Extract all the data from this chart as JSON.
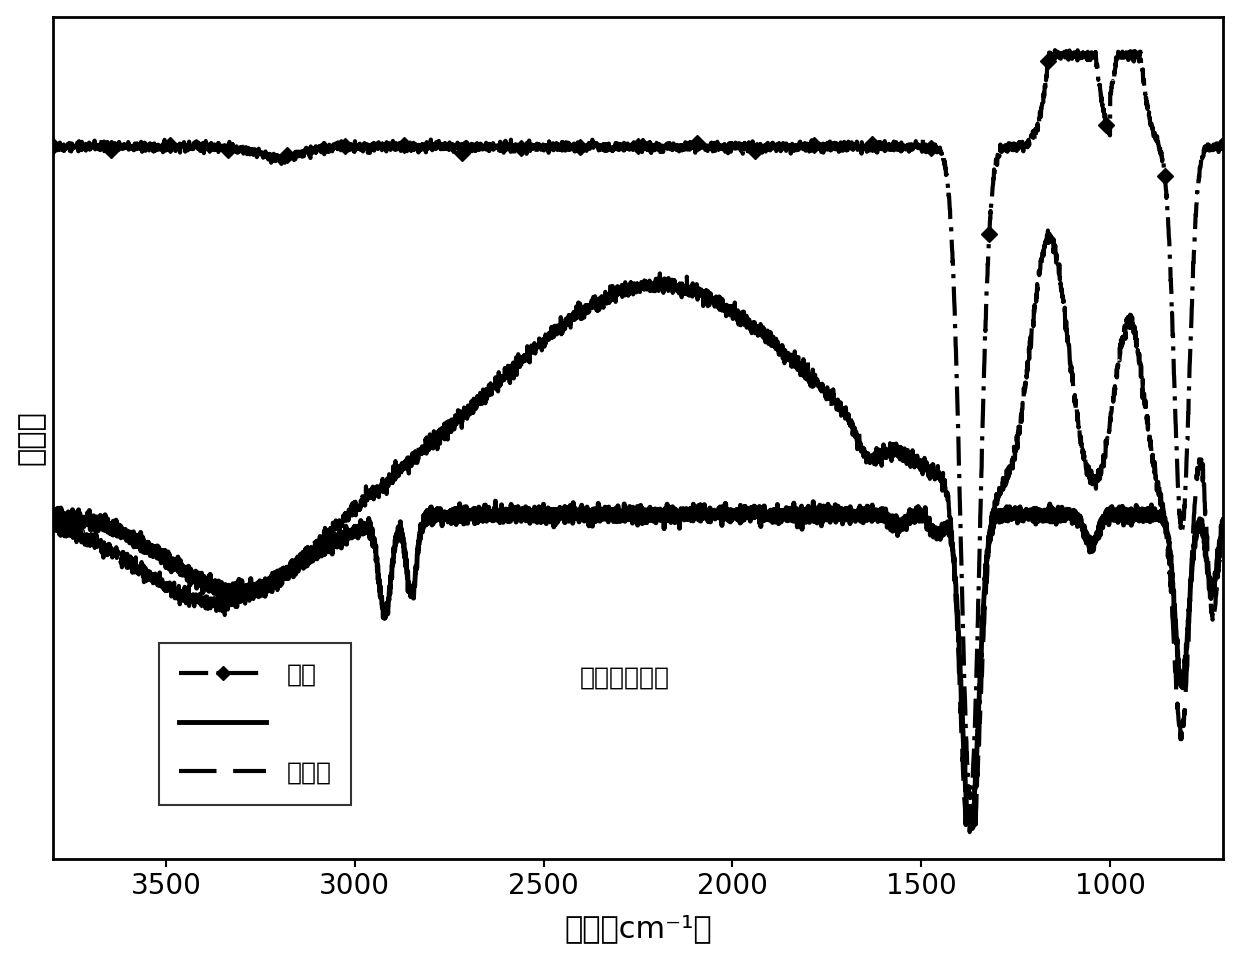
{
  "xlabel": "波长（cm⁻¹）",
  "ylabel": "透射率",
  "ylabel2": "（%）",
  "xlim": [
    3800,
    700
  ],
  "ylim": [
    -0.05,
    1.05
  ],
  "background_color": "#ffffff",
  "line_color": "#000000",
  "legend_label_1": "原始",
  "legend_label_2": "脂肪链接枝的",
  "legend_label_3": "氨氮基",
  "label_fontsize": 22,
  "tick_fontsize": 20,
  "legend_fontsize": 18,
  "xticks": [
    3500,
    3000,
    2500,
    2000,
    1500,
    1000
  ]
}
